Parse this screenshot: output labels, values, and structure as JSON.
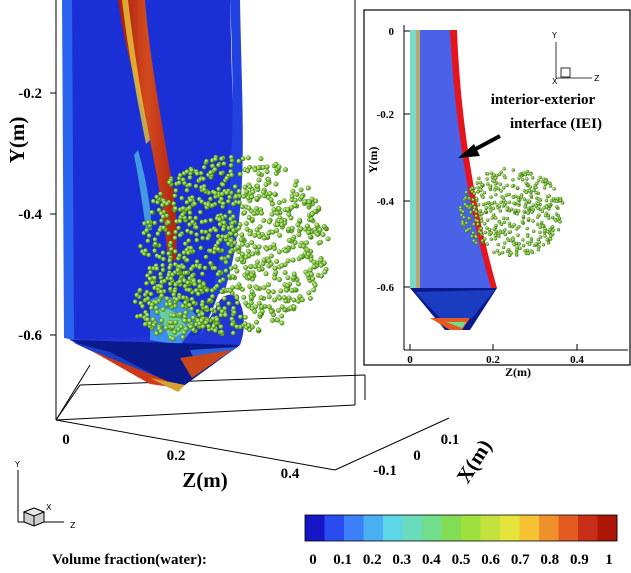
{
  "main_plot": {
    "y_axis_title": "Y(m)",
    "y_ticks": [
      "-0.2",
      "-0.4",
      "-0.6"
    ],
    "z_axis_title": "Z(m)",
    "z_ticks": [
      "0",
      "0.2",
      "0.4"
    ],
    "x_axis_title": "X(m)",
    "x_ticks": [
      "0.1",
      "0",
      "-0.1"
    ]
  },
  "inset": {
    "y_axis_title": "Y(m)",
    "y_ticks": [
      "0",
      "-0.2",
      "-0.4",
      "-0.6"
    ],
    "z_axis_title": "Z(m)",
    "z_ticks": [
      "0",
      "0.2",
      "0.4"
    ],
    "triad": {
      "y": "Y",
      "x": "X",
      "z": "Z"
    },
    "annotation_line1": "interior-exterior",
    "annotation_line2": "interface (IEI)"
  },
  "main_triad": {
    "y": "Y",
    "x": "X",
    "z": "Z"
  },
  "legend": {
    "label": "Volume fraction(water):",
    "ticks": [
      "0",
      "0.1",
      "0.2",
      "0.3",
      "0.4",
      "0.5",
      "0.6",
      "0.7",
      "0.8",
      "0.9",
      "1"
    ],
    "colors": [
      "#1616c8",
      "#2a4cf0",
      "#3c7ff8",
      "#48aff5",
      "#5fd6e6",
      "#69dcbc",
      "#72dd8a",
      "#82dc55",
      "#9fdf3f",
      "#c4e23c",
      "#e5e43a",
      "#f4c232",
      "#f0902a",
      "#e35a22",
      "#c92d18",
      "#aa1608"
    ]
  },
  "colors": {
    "water_blue": "#1a2fd6",
    "dark_blue": "#0a1a8c",
    "red": "#cc2a10",
    "droplet_green": "#7ec63a",
    "interface_red": "#e8141c"
  }
}
